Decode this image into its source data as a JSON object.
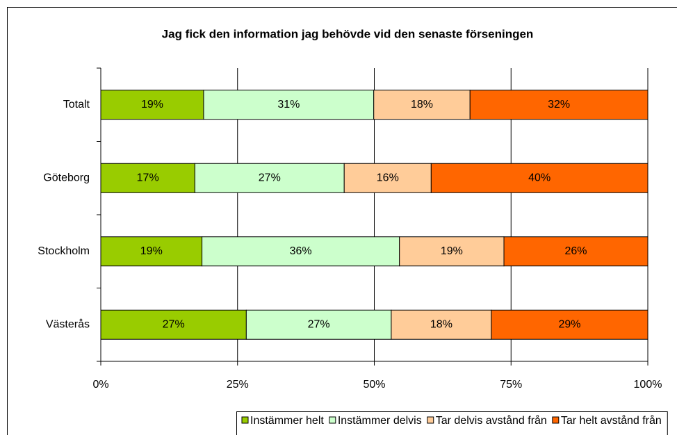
{
  "chart_data": {
    "type": "stacked-barh",
    "title": "Jag fick den information jag behövde vid den senaste förseningen",
    "categories": [
      "Totalt",
      "Göteborg",
      "Stockholm",
      "Västerås"
    ],
    "series": [
      {
        "name": "Instämmer helt",
        "color": "#99cc00",
        "values": [
          18.8,
          17.2,
          18.5,
          26.6
        ],
        "value_labels": [
          "19%",
          "17%",
          "19%",
          "27%"
        ]
      },
      {
        "name": "Instämmer delvis",
        "color": "#ccffcc",
        "values": [
          31.1,
          27.3,
          36.1,
          26.5
        ],
        "value_labels": [
          "31%",
          "27%",
          "36%",
          "27%"
        ]
      },
      {
        "name": "Tar delvis avstånd från",
        "color": "#ffcc99",
        "values": [
          17.6,
          15.9,
          19.1,
          18.3
        ],
        "value_labels": [
          "18%",
          "16%",
          "19%",
          "18%"
        ]
      },
      {
        "name": "Tar helt avstånd från",
        "color": "#ff6600",
        "values": [
          32.5,
          39.6,
          26.3,
          28.6
        ],
        "value_labels": [
          "32%",
          "40%",
          "26%",
          "29%"
        ]
      }
    ],
    "xlim": [
      0,
      100
    ],
    "xticks": [
      {
        "value": 0,
        "label": "0%"
      },
      {
        "value": 25,
        "label": "25%"
      },
      {
        "value": 50,
        "label": "50%"
      },
      {
        "value": 75,
        "label": "75%"
      },
      {
        "value": 100,
        "label": "100%"
      }
    ],
    "grid": true,
    "legend": "bottom"
  }
}
